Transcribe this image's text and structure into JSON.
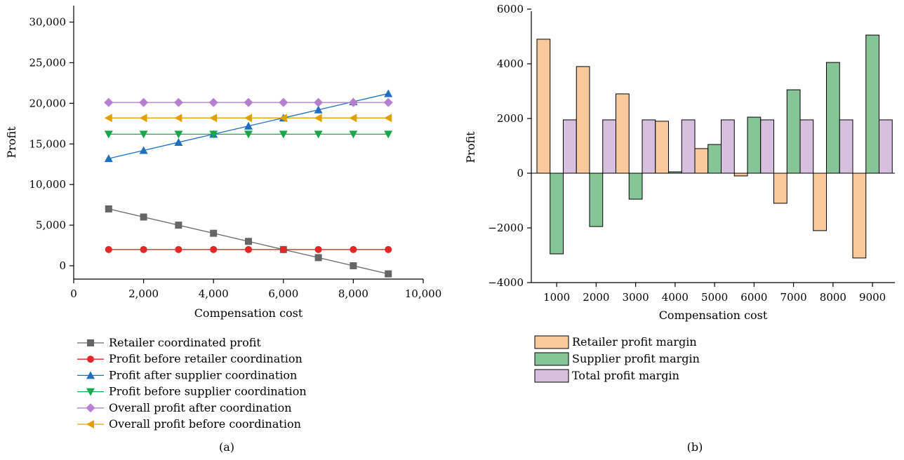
{
  "chart_data": [
    {
      "type": "line",
      "panel_label": "(a)",
      "xlabel": "Compensation cost",
      "ylabel": "Profit",
      "xlim": [
        0,
        10000
      ],
      "ylim": [
        -1500,
        32000
      ],
      "xticks": [
        0,
        2000,
        4000,
        6000,
        8000,
        10000
      ],
      "xtick_labels": [
        "0",
        "2,000",
        "4,000",
        "6,000",
        "8,000",
        "10,000"
      ],
      "yticks": [
        0,
        5000,
        10000,
        15000,
        20000,
        25000,
        30000
      ],
      "ytick_labels": [
        "0",
        "5,000",
        "10,000",
        "15,000",
        "20,000",
        "25,000",
        "30,000"
      ],
      "grid": false,
      "legend_position": "bottom",
      "x": [
        1000,
        2000,
        3000,
        4000,
        5000,
        6000,
        7000,
        8000,
        9000
      ],
      "series": [
        {
          "name": "Retailer coordinated profit",
          "color": "#666666",
          "marker": "square",
          "values": [
            7000,
            6000,
            5000,
            4000,
            3000,
            2000,
            1000,
            0,
            -1000
          ]
        },
        {
          "name": "Profit before retailer coordination",
          "color": "#e32626",
          "marker": "circle",
          "values": [
            2000,
            2000,
            2000,
            2000,
            2000,
            2000,
            2000,
            2000,
            2000
          ]
        },
        {
          "name": "Profit after supplier coordination",
          "color": "#1f6fbf",
          "marker": "triangle-up",
          "values": [
            13200,
            14200,
            15200,
            16200,
            17200,
            18200,
            19200,
            20200,
            21200
          ]
        },
        {
          "name": "Profit before supplier coordination",
          "color": "#18a84a",
          "marker": "triangle-down",
          "values": [
            16200,
            16200,
            16200,
            16200,
            16200,
            16200,
            16200,
            16200,
            16200
          ]
        },
        {
          "name": "Overall profit after coordination",
          "color": "#b77fd1",
          "marker": "diamond",
          "values": [
            20100,
            20100,
            20100,
            20100,
            20100,
            20100,
            20100,
            20100,
            20100
          ]
        },
        {
          "name": "Overall profit before coordination",
          "color": "#e0a100",
          "marker": "triangle-left",
          "values": [
            18200,
            18200,
            18200,
            18200,
            18200,
            18200,
            18200,
            18200,
            18200
          ]
        }
      ]
    },
    {
      "type": "bar",
      "panel_label": "(b)",
      "xlabel": "Compensation cost",
      "ylabel": "Profit",
      "ylim": [
        -4000,
        6000
      ],
      "yticks": [
        -4000,
        -2000,
        0,
        2000,
        4000,
        6000
      ],
      "ytick_labels": [
        "−4000",
        "−2000",
        "0",
        "2000",
        "4000",
        "6000"
      ],
      "grid": false,
      "legend_position": "bottom",
      "categories": [
        "1000",
        "2000",
        "3000",
        "4000",
        "5000",
        "6000",
        "7000",
        "8000",
        "9000"
      ],
      "series": [
        {
          "name": "Retailer profit margin",
          "color": "#f9c89b",
          "values": [
            4900,
            3900,
            2900,
            1900,
            900,
            -100,
            -1100,
            -2100,
            -3100
          ]
        },
        {
          "name": "Supplier profit margin",
          "color": "#86c596",
          "values": [
            -2950,
            -1950,
            -950,
            50,
            1050,
            2050,
            3050,
            4050,
            5050
          ]
        },
        {
          "name": "Total profit margin",
          "color": "#d7bfe0",
          "values": [
            1950,
            1950,
            1950,
            1950,
            1950,
            1950,
            1950,
            1950,
            1950
          ]
        }
      ]
    }
  ]
}
